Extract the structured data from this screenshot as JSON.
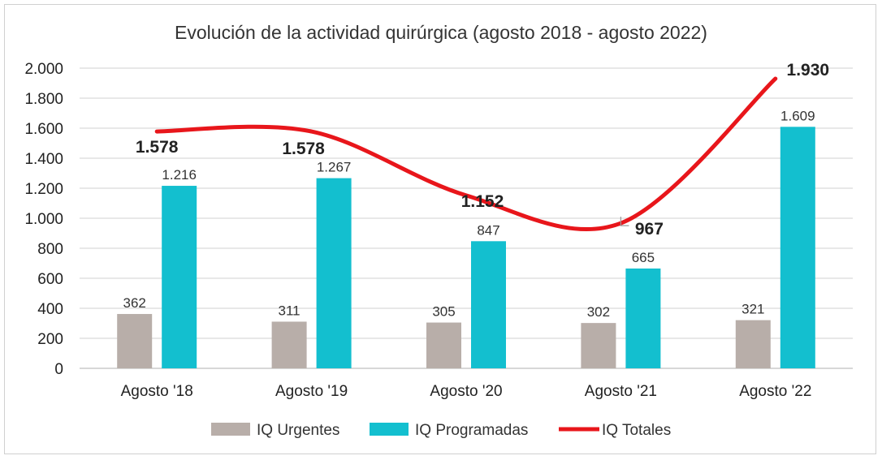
{
  "colors": {
    "urgentes": "#b8aea9",
    "programadas": "#13bfcf",
    "totales": "#e8161b",
    "grid": "#d9d9d9"
  },
  "chart_data": {
    "type": "bar",
    "title": "Evolución de la actividad quirúrgica (agosto 2018 - agosto 2022)",
    "categories": [
      "Agosto '18",
      "Agosto '19",
      "Agosto '20",
      "Agosto '21",
      "Agosto '22"
    ],
    "ylim": [
      0,
      2000
    ],
    "yticks": [
      0,
      200,
      400,
      600,
      800,
      1000,
      1200,
      1400,
      1600,
      1800,
      2000
    ],
    "ytick_labels": [
      "0",
      "200",
      "400",
      "600",
      "800",
      "1.000",
      "1.200",
      "1.400",
      "1.600",
      "1.800",
      "2.000"
    ],
    "grid": true,
    "legend_position": "bottom",
    "series": [
      {
        "name": "IQ Urgentes",
        "type": "bar",
        "values": [
          362,
          311,
          305,
          302,
          321
        ],
        "labels": [
          "362",
          "311",
          "305",
          "302",
          "321"
        ]
      },
      {
        "name": "IQ Programadas",
        "type": "bar",
        "values": [
          1216,
          1267,
          847,
          665,
          1609
        ],
        "labels": [
          "1.216",
          "1.267",
          "847",
          "665",
          "1.609"
        ]
      },
      {
        "name": "IQ Totales",
        "type": "line",
        "values": [
          1578,
          1578,
          1152,
          967,
          1930
        ],
        "labels": [
          "1.578",
          "1.578",
          "1.152",
          "967",
          "1.930"
        ]
      }
    ]
  }
}
